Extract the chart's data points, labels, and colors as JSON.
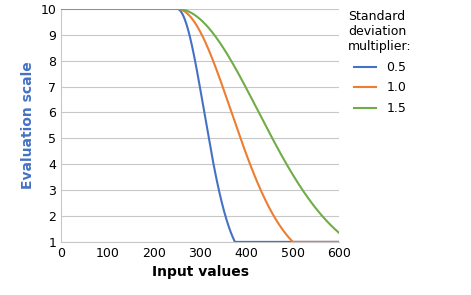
{
  "title": "",
  "xlabel": "Input values",
  "ylabel": "Evaluation scale",
  "xlim": [
    0,
    600
  ],
  "ylim": [
    1,
    10
  ],
  "xticks": [
    0,
    100,
    200,
    300,
    400,
    500,
    600
  ],
  "yticks": [
    1,
    2,
    3,
    4,
    5,
    6,
    7,
    8,
    9,
    10
  ],
  "mean": 250,
  "std": 116.5,
  "multipliers": [
    0.5,
    1.0,
    1.5
  ],
  "colors": [
    "#4472C4",
    "#ED7D31",
    "#70AD47"
  ],
  "labels": [
    "0.5",
    "1.0",
    "1.5"
  ],
  "legend_title": "Standard\ndeviation\nmultiplier:",
  "ylabel_color": "#4472C4",
  "background_color": "#FFFFFF",
  "grid_color": "#C8C8C8"
}
